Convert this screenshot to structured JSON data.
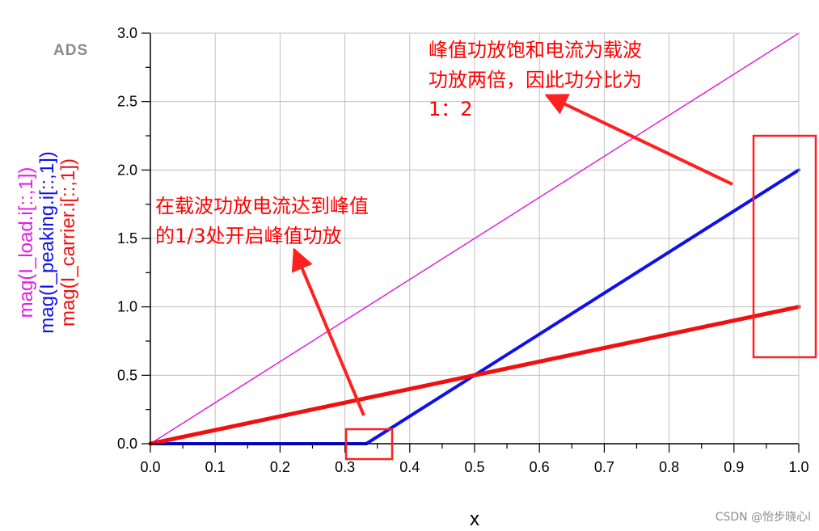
{
  "chart_data": {
    "type": "line",
    "xlabel": "x",
    "ylim": [
      0,
      3
    ],
    "xlim": [
      0,
      1
    ],
    "xticks": [
      "0.0",
      "0.1",
      "0.2",
      "0.3",
      "0.4",
      "0.5",
      "0.6",
      "0.7",
      "0.8",
      "0.9",
      "1.0"
    ],
    "yticks": [
      "0.0",
      "0.5",
      "1.0",
      "1.5",
      "2.0",
      "2.5",
      "3.0"
    ],
    "grid": true,
    "series": [
      {
        "name": "mag(I_load.i[::,1])",
        "color": "#e020e0",
        "x": [
          0,
          1
        ],
        "y": [
          0,
          3
        ]
      },
      {
        "name": "mag(I_peaking.i[::,1])",
        "color": "#1010e8",
        "x": [
          0,
          0.333,
          1
        ],
        "y": [
          0,
          0,
          2
        ]
      },
      {
        "name": "mag(I_carrier.i[::,1])",
        "color": "#f01010",
        "x": [
          0,
          1
        ],
        "y": [
          0,
          1
        ]
      }
    ]
  },
  "badge": "ADS",
  "annotations": {
    "top": [
      "峰值功放饱和电流为载波",
      "功放两倍，因此功分比为",
      "1：2"
    ],
    "mid": [
      "在载波功放电流达到峰值",
      "的1/3处开启峰值功放"
    ]
  },
  "watermark": "CSDN @怡步晓心l",
  "colors": {
    "annotation": "#ff0000",
    "axis": "#000000",
    "grid": "#c0c0c0"
  }
}
